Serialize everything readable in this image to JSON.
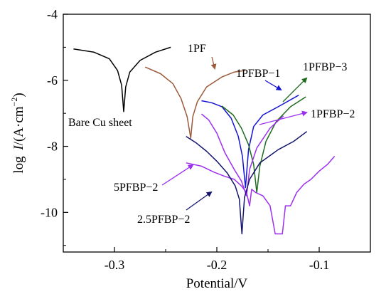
{
  "chart_data": {
    "type": "line",
    "title": "",
    "xlabel": "Potential/V",
    "ylabel": "log I/(A·cm⁻²)",
    "ylabel_parts": {
      "log": "log",
      "I": "I",
      "rest": "/(A·cm",
      "exp": "−2",
      "close": ")"
    },
    "xlim": [
      -0.35,
      -0.05
    ],
    "ylim": [
      -11.2,
      -4.0
    ],
    "xticks": [
      -0.3,
      -0.2,
      -0.1
    ],
    "yticks": [
      -4,
      -6,
      -8,
      -10
    ],
    "xtick_labels": [
      "-0.3",
      "-0.2",
      "-0.1"
    ],
    "ytick_labels": [
      "-4",
      "-6",
      "-8",
      "-10"
    ],
    "grid": false,
    "legend": "none",
    "series": [
      {
        "name": "Bare Cu sheet",
        "color": "#000000",
        "points": [
          [
            -0.34,
            -5.05
          ],
          [
            -0.32,
            -5.15
          ],
          [
            -0.305,
            -5.35
          ],
          [
            -0.297,
            -5.7
          ],
          [
            -0.293,
            -6.15
          ],
          [
            -0.291,
            -6.95
          ],
          [
            -0.289,
            -6.2
          ],
          [
            -0.285,
            -5.75
          ],
          [
            -0.275,
            -5.4
          ],
          [
            -0.26,
            -5.15
          ],
          [
            -0.245,
            -5.0
          ]
        ]
      },
      {
        "name": "1PF",
        "color": "#9c5a3a",
        "points": [
          [
            -0.27,
            -5.6
          ],
          [
            -0.255,
            -5.8
          ],
          [
            -0.243,
            -6.1
          ],
          [
            -0.235,
            -6.55
          ],
          [
            -0.229,
            -7.1
          ],
          [
            -0.2255,
            -7.75
          ],
          [
            -0.2235,
            -7.1
          ],
          [
            -0.219,
            -6.65
          ],
          [
            -0.21,
            -6.2
          ],
          [
            -0.195,
            -5.9
          ],
          [
            -0.183,
            -5.75
          ],
          [
            -0.172,
            -5.7
          ]
        ]
      },
      {
        "name": "1PFBP-1",
        "color": "#1414d2",
        "points": [
          [
            -0.215,
            -6.62
          ],
          [
            -0.205,
            -6.68
          ],
          [
            -0.195,
            -6.8
          ],
          [
            -0.186,
            -7.15
          ],
          [
            -0.179,
            -7.7
          ],
          [
            -0.175,
            -8.3
          ],
          [
            -0.172,
            -9.25
          ],
          [
            -0.169,
            -8.1
          ],
          [
            -0.164,
            -7.4
          ],
          [
            -0.155,
            -7.05
          ],
          [
            -0.14,
            -6.8
          ],
          [
            -0.12,
            -6.45
          ]
        ]
      },
      {
        "name": "1PFBP-3",
        "color": "#1e6b1e",
        "points": [
          [
            -0.195,
            -6.78
          ],
          [
            -0.184,
            -7.05
          ],
          [
            -0.176,
            -7.45
          ],
          [
            -0.169,
            -7.95
          ],
          [
            -0.164,
            -8.55
          ],
          [
            -0.161,
            -9.4
          ],
          [
            -0.158,
            -8.6
          ],
          [
            -0.152,
            -7.85
          ],
          [
            -0.142,
            -7.25
          ],
          [
            -0.128,
            -6.8
          ],
          [
            -0.113,
            -6.5
          ]
        ]
      },
      {
        "name": "1PFBP-2",
        "color": "#9d2ff0",
        "points": [
          [
            -0.215,
            -7.02
          ],
          [
            -0.208,
            -7.2
          ],
          [
            -0.2,
            -7.6
          ],
          [
            -0.192,
            -8.2
          ],
          [
            -0.183,
            -8.7
          ],
          [
            -0.176,
            -9.05
          ],
          [
            -0.171,
            -9.5
          ],
          [
            -0.168,
            -8.7
          ],
          [
            -0.161,
            -8.05
          ],
          [
            -0.148,
            -7.45
          ],
          [
            -0.135,
            -7.08
          ]
        ]
      },
      {
        "name": "5PFBP-2",
        "color": "#9d2ff0",
        "points": [
          [
            -0.23,
            -8.5
          ],
          [
            -0.215,
            -8.6
          ],
          [
            -0.203,
            -8.78
          ],
          [
            -0.193,
            -8.9
          ],
          [
            -0.183,
            -9.0
          ],
          [
            -0.176,
            -9.2
          ],
          [
            -0.171,
            -9.4
          ],
          [
            -0.168,
            -9.8
          ],
          [
            -0.166,
            -9.3
          ],
          [
            -0.162,
            -9.4
          ],
          [
            -0.155,
            -9.5
          ],
          [
            -0.148,
            -9.8
          ],
          [
            -0.143,
            -10.65
          ],
          [
            -0.136,
            -10.65
          ],
          [
            -0.133,
            -9.8
          ],
          [
            -0.128,
            -9.8
          ],
          [
            -0.122,
            -9.4
          ],
          [
            -0.115,
            -9.15
          ],
          [
            -0.108,
            -9.0
          ],
          [
            -0.1,
            -8.75
          ],
          [
            -0.092,
            -8.55
          ],
          [
            -0.085,
            -8.3
          ]
        ]
      },
      {
        "name": "2.5PFBP-2",
        "color": "#14146e",
        "points": [
          [
            -0.23,
            -7.7
          ],
          [
            -0.22,
            -7.9
          ],
          [
            -0.21,
            -8.15
          ],
          [
            -0.2,
            -8.45
          ],
          [
            -0.19,
            -8.8
          ],
          [
            -0.182,
            -9.2
          ],
          [
            -0.178,
            -9.6
          ],
          [
            -0.1755,
            -10.65
          ],
          [
            -0.173,
            -9.55
          ],
          [
            -0.168,
            -9.0
          ],
          [
            -0.158,
            -8.5
          ],
          [
            -0.14,
            -8.1
          ],
          [
            -0.125,
            -7.85
          ],
          [
            -0.112,
            -7.55
          ]
        ]
      }
    ],
    "annotations": [
      {
        "text": "Bare Cu sheet",
        "color": "#000000",
        "arrow": false
      },
      {
        "text": "1PF",
        "color": "#9c5a3a",
        "arrow": true
      },
      {
        "text": "1PFBP−1",
        "color": "#1414d2",
        "arrow": true
      },
      {
        "text": "1PFBP−3",
        "color": "#1e6b1e",
        "arrow": true
      },
      {
        "text": "1PFBP−2",
        "color": "#9d2ff0",
        "arrow": true
      },
      {
        "text": "5PFBP−2",
        "color": "#9d2ff0",
        "arrow": true
      },
      {
        "text": "2.5PFBP−2",
        "color": "#14146e",
        "arrow": true
      }
    ]
  }
}
